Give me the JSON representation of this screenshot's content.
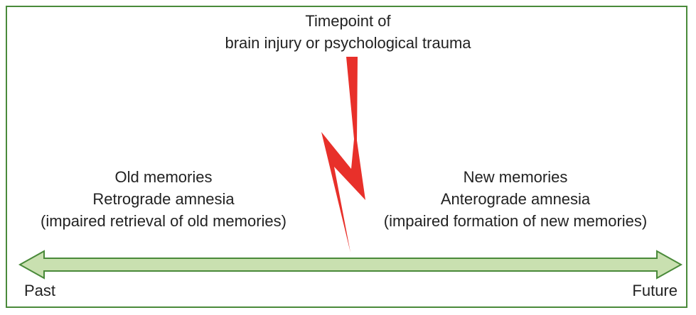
{
  "title": {
    "line1": "Timepoint of",
    "line2": "brain injury or psychological trauma"
  },
  "left": {
    "line1": "Old memories",
    "line2": "Retrograde amnesia",
    "line3": "(impaired retrieval of old memories)"
  },
  "right": {
    "line1": "New memories",
    "line2": "Anterograde amnesia",
    "line3": "(impaired formation of new memories)"
  },
  "axis": {
    "start_label": "Past",
    "end_label": "Future"
  },
  "colors": {
    "frame": "#4a8a3a",
    "arrow_fill": "#c9e0b0",
    "arrow_stroke": "#4a8a3a",
    "bolt": "#e8302a"
  },
  "icons": {
    "event": "lightning-bolt-icon",
    "timeline": "double-headed-arrow"
  }
}
